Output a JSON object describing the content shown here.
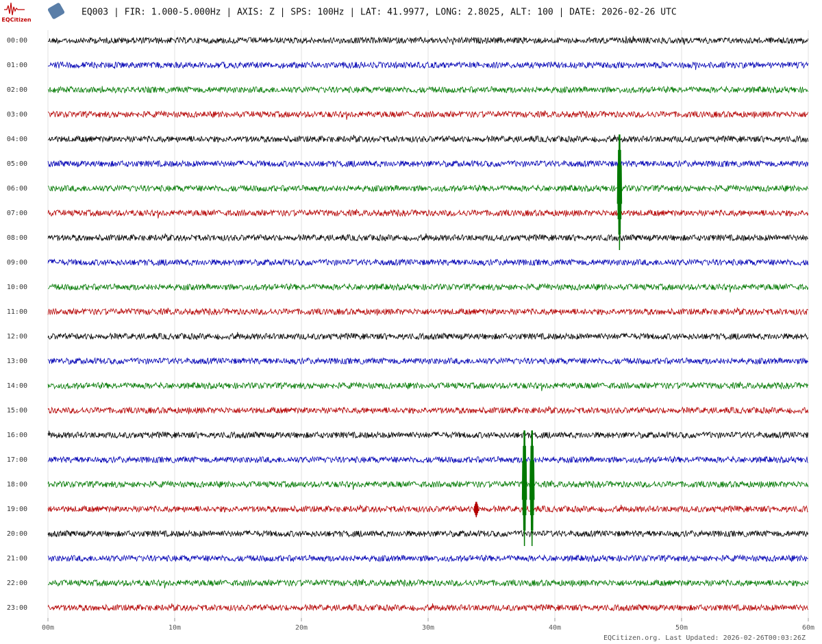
{
  "chart_data": {
    "type": "helicorder",
    "title": "EQ003 | FIR: 1.000-5.000Hz | AXIS: Z | SPS: 100Hz | LAT: 41.9977, LONG: 2.8025, ALT: 100 | DATE: 2026-02-26 UTC",
    "logo_text": "EQCitizen",
    "categories": [
      "00:00",
      "01:00",
      "02:00",
      "03:00",
      "04:00",
      "05:00",
      "06:00",
      "07:00",
      "08:00",
      "09:00",
      "10:00",
      "11:00",
      "12:00",
      "13:00",
      "14:00",
      "15:00",
      "16:00",
      "17:00",
      "18:00",
      "19:00",
      "20:00",
      "21:00",
      "22:00",
      "23:00"
    ],
    "colors": [
      "#000000",
      "#0000b4",
      "#007800",
      "#b40000"
    ],
    "xlim": [
      0,
      60
    ],
    "xticks": [
      {
        "value": 0,
        "label": "00m"
      },
      {
        "value": 10,
        "label": "10m"
      },
      {
        "value": 20,
        "label": "20m"
      },
      {
        "value": 30,
        "label": "30m"
      },
      {
        "value": 40,
        "label": "40m"
      },
      {
        "value": 50,
        "label": "50m"
      },
      {
        "value": 60,
        "label": "60m"
      }
    ],
    "grid": true,
    "events": [
      {
        "category": "06:00",
        "x": 45.1
      },
      {
        "category": "18:00",
        "x": 37.6
      },
      {
        "category": "18:00",
        "x": 38.2
      },
      {
        "category": "19:00",
        "x": 33.8
      }
    ],
    "footer": "EQCitizen.org. Last Updated: 2026-02-26T00:03:26Z"
  }
}
